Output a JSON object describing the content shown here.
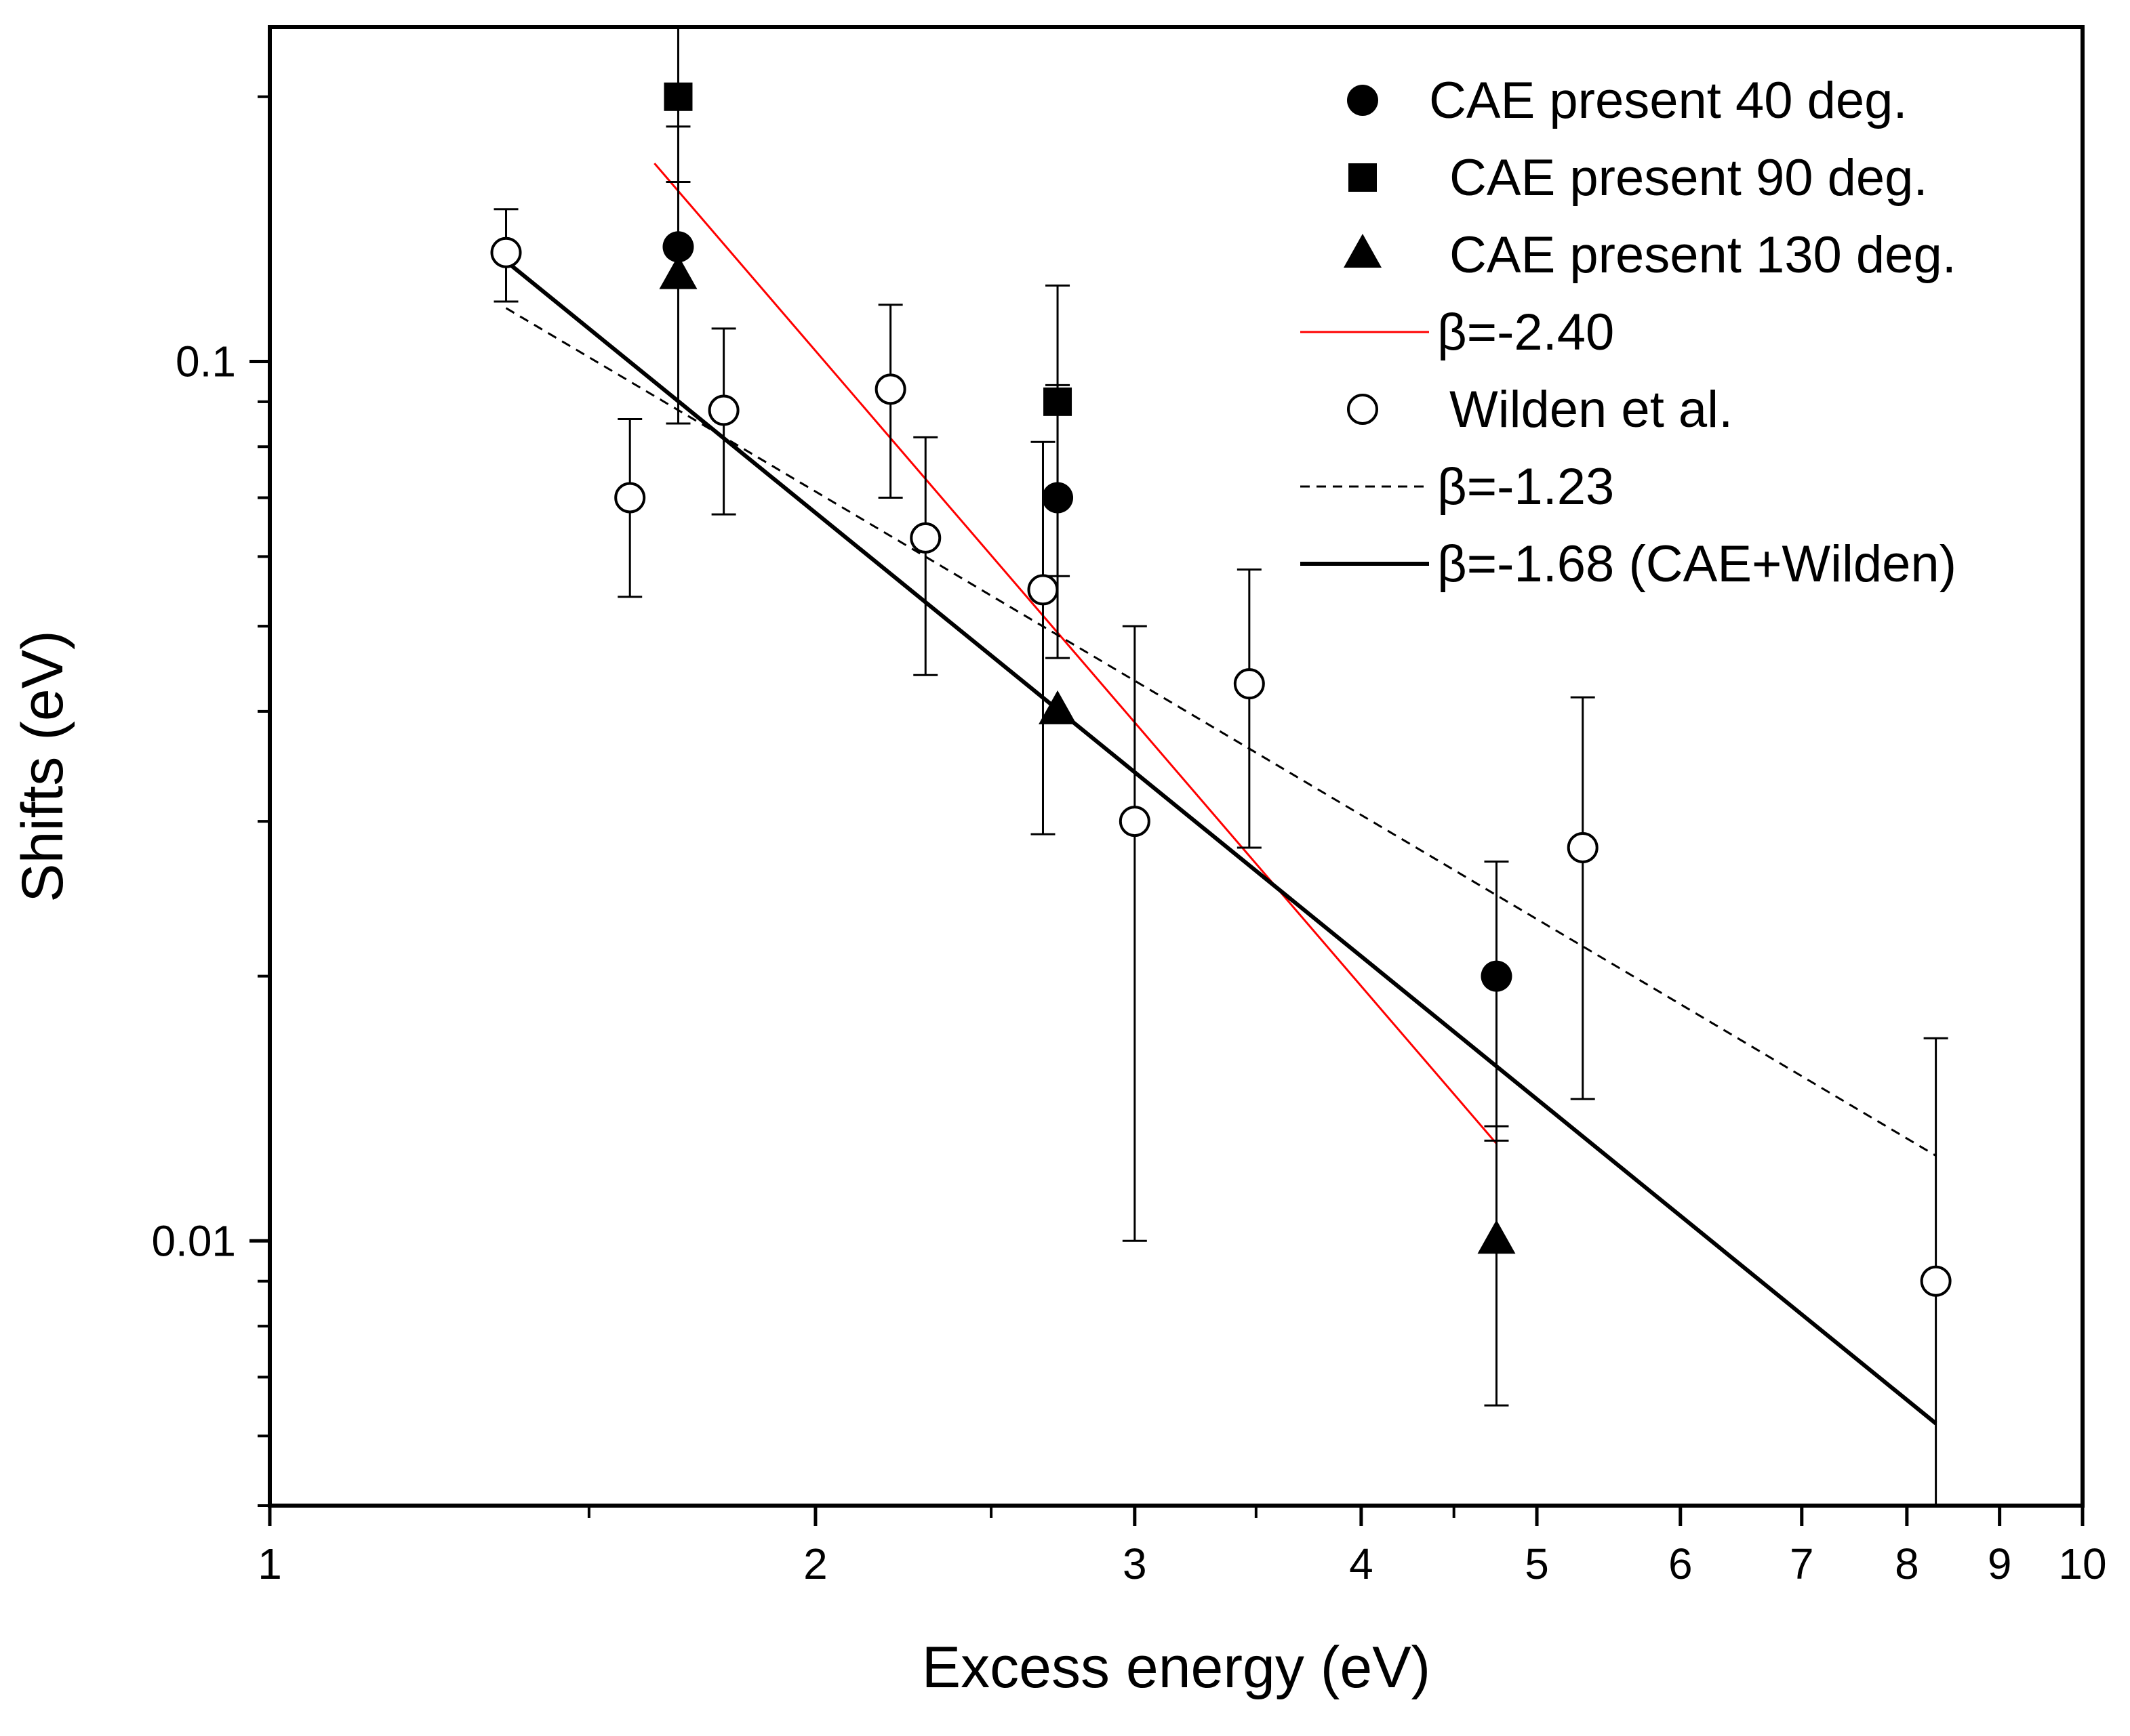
{
  "chart_data": {
    "type": "scatter",
    "title": "",
    "xlabel": "Excess energy (eV)",
    "ylabel": "Shifts (eV)",
    "xscale": "log",
    "yscale": "log",
    "xlim": [
      1,
      10
    ],
    "ylim": [
      0.005,
      0.24
    ],
    "x_ticks": [
      {
        "value": 1,
        "label": "1"
      },
      {
        "value": 2,
        "label": "2"
      },
      {
        "value": 3,
        "label": "3"
      },
      {
        "value": 4,
        "label": "4"
      },
      {
        "value": 5,
        "label": "5"
      },
      {
        "value": 6,
        "label": "6"
      },
      {
        "value": 7,
        "label": "7"
      },
      {
        "value": 8,
        "label": "8"
      },
      {
        "value": 9,
        "label": "9"
      },
      {
        "value": 10,
        "label": "10"
      }
    ],
    "y_ticks": [
      {
        "value": 0.01,
        "label": "0.01"
      },
      {
        "value": 0.1,
        "label": "0.1"
      }
    ],
    "y_minor_ticks": [
      0.005,
      0.006,
      0.007,
      0.008,
      0.009,
      0.02,
      0.03,
      0.04,
      0.05,
      0.06,
      0.07,
      0.08,
      0.09,
      0.2
    ],
    "x_minor_ticks": [
      1.5,
      2.5,
      3.5,
      4.5
    ],
    "legend_position": "top-right",
    "series": [
      {
        "name": "CAE present 40 deg.",
        "kind": "points",
        "marker": "circle-filled",
        "points": [
          {
            "x": 1.68,
            "y": 0.135,
            "ylo": 0.085,
            "yhi": 0.185
          },
          {
            "x": 2.72,
            "y": 0.07,
            "ylo": 0.046,
            "yhi": 0.094
          },
          {
            "x": 4.75,
            "y": 0.02,
            "ylo": 0.013,
            "yhi": 0.027
          }
        ]
      },
      {
        "name": "CAE present 90 deg.",
        "kind": "points",
        "marker": "square-filled",
        "points": [
          {
            "x": 1.68,
            "y": 0.2,
            "ylo": 0.16,
            "yhi": 0.24
          },
          {
            "x": 2.72,
            "y": 0.09,
            "ylo": 0.057,
            "yhi": 0.122
          }
        ]
      },
      {
        "name": "CAE present 130 deg.",
        "kind": "points",
        "marker": "triangle-filled",
        "points": [
          {
            "x": 1.68,
            "y": 0.125
          },
          {
            "x": 2.72,
            "y": 0.04
          },
          {
            "x": 4.75,
            "y": 0.01,
            "ylo": 0.0065,
            "yhi": 0.0135
          }
        ]
      },
      {
        "name": "β=-2.40",
        "kind": "line",
        "color": "#ff0000",
        "dash": "solid",
        "width": 3,
        "points": [
          {
            "x": 1.63,
            "y": 0.168
          },
          {
            "x": 4.75,
            "y": 0.0129
          }
        ]
      },
      {
        "name": "Wilden et al.",
        "kind": "points",
        "marker": "circle-open",
        "points": [
          {
            "x": 1.35,
            "y": 0.133,
            "ylo": 0.117,
            "yhi": 0.149
          },
          {
            "x": 1.58,
            "y": 0.07,
            "ylo": 0.054,
            "yhi": 0.086
          },
          {
            "x": 1.78,
            "y": 0.088,
            "ylo": 0.067,
            "yhi": 0.109
          },
          {
            "x": 2.2,
            "y": 0.093,
            "ylo": 0.07,
            "yhi": 0.116
          },
          {
            "x": 2.3,
            "y": 0.063,
            "ylo": 0.044,
            "yhi": 0.082
          },
          {
            "x": 2.67,
            "y": 0.055,
            "ylo": 0.029,
            "yhi": 0.081
          },
          {
            "x": 3.0,
            "y": 0.03,
            "ylo": 0.01,
            "yhi": 0.05
          },
          {
            "x": 3.47,
            "y": 0.043,
            "ylo": 0.028,
            "yhi": 0.058
          },
          {
            "x": 5.3,
            "y": 0.028,
            "ylo": 0.0145,
            "yhi": 0.0415
          },
          {
            "x": 8.3,
            "y": 0.009,
            "ylo": 0.0,
            "yhi": 0.017
          }
        ]
      },
      {
        "name": "β=-1.23",
        "kind": "line",
        "color": "#000000",
        "dash": "dashed",
        "width": 3,
        "points": [
          {
            "x": 1.35,
            "y": 0.115
          },
          {
            "x": 8.3,
            "y": 0.0125
          }
        ]
      },
      {
        "name": "β=-1.68 (CAE+Wilden)",
        "kind": "line",
        "color": "#000000",
        "dash": "solid",
        "width": 6,
        "points": [
          {
            "x": 1.35,
            "y": 0.13
          },
          {
            "x": 8.3,
            "y": 0.0062
          }
        ]
      }
    ]
  }
}
